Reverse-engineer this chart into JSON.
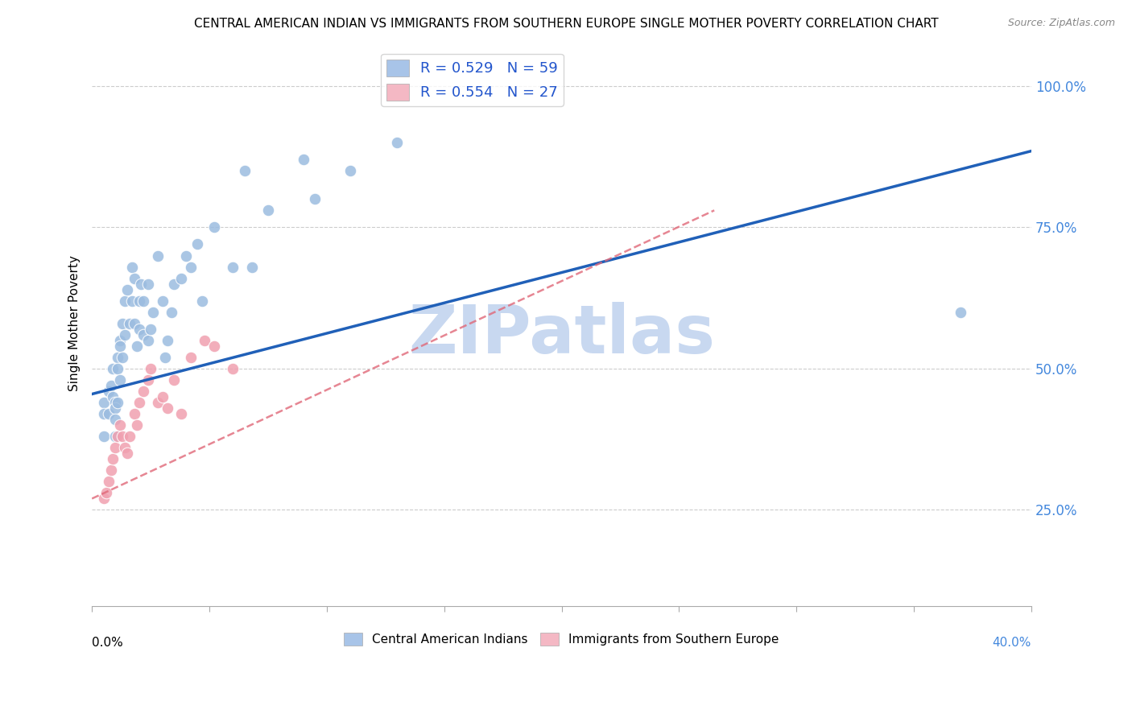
{
  "title": "CENTRAL AMERICAN INDIAN VS IMMIGRANTS FROM SOUTHERN EUROPE SINGLE MOTHER POVERTY CORRELATION CHART",
  "source": "Source: ZipAtlas.com",
  "ylabel": "Single Mother Poverty",
  "ytick_labels": [
    "25.0%",
    "50.0%",
    "75.0%",
    "100.0%"
  ],
  "ytick_values": [
    0.25,
    0.5,
    0.75,
    1.0
  ],
  "xlim": [
    0.0,
    0.4
  ],
  "ylim": [
    0.08,
    1.08
  ],
  "legend_color1": "#a8c4e8",
  "legend_color2": "#f4b8c4",
  "scatter_color1": "#9bbce0",
  "scatter_color2": "#f0a0b0",
  "line_color1": "#2060b8",
  "line_color2": "#e06878",
  "watermark": "ZIPatlas",
  "watermark_color": "#c8d8f0",
  "watermark_fontsize": 60,
  "blue_points_x": [
    0.005,
    0.005,
    0.005,
    0.007,
    0.007,
    0.008,
    0.009,
    0.009,
    0.01,
    0.01,
    0.01,
    0.01,
    0.011,
    0.011,
    0.011,
    0.012,
    0.012,
    0.012,
    0.013,
    0.013,
    0.014,
    0.014,
    0.015,
    0.016,
    0.017,
    0.017,
    0.018,
    0.018,
    0.019,
    0.02,
    0.02,
    0.021,
    0.022,
    0.022,
    0.024,
    0.024,
    0.025,
    0.026,
    0.028,
    0.03,
    0.031,
    0.032,
    0.034,
    0.035,
    0.038,
    0.04,
    0.042,
    0.045,
    0.047,
    0.052,
    0.06,
    0.065,
    0.068,
    0.075,
    0.09,
    0.095,
    0.11,
    0.13,
    0.37
  ],
  "blue_points_y": [
    0.44,
    0.42,
    0.38,
    0.46,
    0.42,
    0.47,
    0.5,
    0.45,
    0.44,
    0.43,
    0.41,
    0.38,
    0.52,
    0.5,
    0.44,
    0.55,
    0.54,
    0.48,
    0.58,
    0.52,
    0.62,
    0.56,
    0.64,
    0.58,
    0.68,
    0.62,
    0.66,
    0.58,
    0.54,
    0.62,
    0.57,
    0.65,
    0.62,
    0.56,
    0.65,
    0.55,
    0.57,
    0.6,
    0.7,
    0.62,
    0.52,
    0.55,
    0.6,
    0.65,
    0.66,
    0.7,
    0.68,
    0.72,
    0.62,
    0.75,
    0.68,
    0.85,
    0.68,
    0.78,
    0.87,
    0.8,
    0.85,
    0.9,
    0.6
  ],
  "pink_points_x": [
    0.005,
    0.006,
    0.007,
    0.008,
    0.009,
    0.01,
    0.011,
    0.012,
    0.013,
    0.014,
    0.015,
    0.016,
    0.018,
    0.019,
    0.02,
    0.022,
    0.024,
    0.025,
    0.028,
    0.03,
    0.032,
    0.035,
    0.038,
    0.042,
    0.048,
    0.052,
    0.06
  ],
  "pink_points_y": [
    0.27,
    0.28,
    0.3,
    0.32,
    0.34,
    0.36,
    0.38,
    0.4,
    0.38,
    0.36,
    0.35,
    0.38,
    0.42,
    0.4,
    0.44,
    0.46,
    0.48,
    0.5,
    0.44,
    0.45,
    0.43,
    0.48,
    0.42,
    0.52,
    0.55,
    0.54,
    0.5
  ],
  "R1": 0.529,
  "N1": 59,
  "R2": 0.554,
  "N2": 27,
  "blue_line_x": [
    0.0,
    0.4
  ],
  "blue_line_y": [
    0.455,
    0.885
  ],
  "pink_line_x": [
    0.0,
    0.265
  ],
  "pink_line_y": [
    0.27,
    0.78
  ],
  "legend_entries": [
    "Central American Indians",
    "Immigrants from Southern Europe"
  ]
}
